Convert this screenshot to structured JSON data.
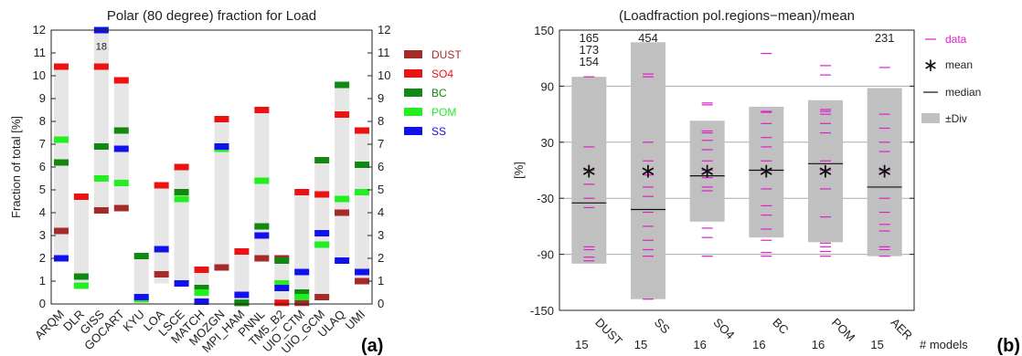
{
  "chart_data": [
    {
      "type": "bar",
      "panel_label": "(a)",
      "title": "Polar (80 degree) fraction for Load",
      "ylabel": "Fraction of total [%]",
      "ylim": [
        0,
        12
      ],
      "yticks": [
        "0",
        "1",
        "2",
        "3",
        "4",
        "5",
        "6",
        "7",
        "8",
        "9",
        "10",
        "11",
        "12"
      ],
      "grid": false,
      "legend_position": "right",
      "categories": [
        "ARQM",
        "DLR",
        "GISS",
        "GOCART",
        "KYU",
        "LOA",
        "LSCE",
        "MATCH",
        "MOZGN",
        "MPI_HAM",
        "PNNL",
        "TM5_B2",
        "UIO_CTM",
        "UIO_GCM",
        "ULAQ",
        "UMI"
      ],
      "range_bar": {
        "low": [
          2.0,
          0.8,
          4.1,
          4.2,
          0.2,
          0.9,
          0.9,
          0.05,
          1.6,
          0.1,
          2.0,
          0.05,
          0.3,
          0.3,
          1.9,
          1.0
        ],
        "high": [
          10.4,
          4.7,
          12.0,
          9.8,
          2.1,
          5.2,
          6.0,
          1.5,
          8.1,
          2.3,
          8.5,
          2.0,
          4.9,
          6.3,
          9.6,
          7.6
        ],
        "color": "#e6e6e6"
      },
      "series": [
        {
          "name": "DUST",
          "color": "#a52a2a",
          "values": [
            3.2,
            null,
            4.1,
            4.2,
            null,
            1.3,
            null,
            null,
            1.6,
            0.05,
            2.0,
            2.0,
            0.05,
            0.3,
            4.0,
            1.0
          ]
        },
        {
          "name": "SO4",
          "color": "#ee1111",
          "values": [
            10.4,
            4.7,
            10.4,
            9.8,
            null,
            5.2,
            6.0,
            1.5,
            8.1,
            2.3,
            8.5,
            0.05,
            4.9,
            4.8,
            8.3,
            7.6
          ]
        },
        {
          "name": "BC",
          "color": "#118811",
          "values": [
            6.2,
            1.2,
            6.9,
            7.6,
            2.1,
            null,
            4.9,
            0.7,
            null,
            0.05,
            3.4,
            1.9,
            0.5,
            6.3,
            9.6,
            6.1
          ]
        },
        {
          "name": "POM",
          "color": "#22ee22",
          "values": [
            7.2,
            0.8,
            5.5,
            5.3,
            0.2,
            null,
            4.6,
            0.5,
            6.8,
            null,
            5.4,
            0.9,
            0.3,
            2.6,
            4.6,
            4.9
          ]
        },
        {
          "name": "SS",
          "color": "#1111ee",
          "values": [
            2.0,
            null,
            12.0,
            6.8,
            0.3,
            2.4,
            0.9,
            0.1,
            6.9,
            0.4,
            3.0,
            0.7,
            1.4,
            3.1,
            1.9,
            1.4
          ]
        }
      ],
      "annotations": [
        {
          "category": "GISS",
          "text": "18"
        }
      ]
    },
    {
      "type": "scatter",
      "panel_label": "(b)",
      "title": "(Loadfraction pol.regions−mean)/mean",
      "ylabel": "[%]",
      "ylim": [
        -150,
        150
      ],
      "yticks": [
        "-150",
        "-90",
        "-30",
        "30",
        "90",
        "150"
      ],
      "grid": true,
      "legend_position": "right",
      "legend": {
        "data": "data",
        "mean": "mean",
        "median": "median",
        "div": "±Div"
      },
      "models_label": "# models",
      "categories": [
        "DUST",
        "SS",
        "SO4",
        "BC",
        "POM",
        "AER"
      ],
      "n_models": [
        "15",
        "15",
        "16",
        "16",
        "16",
        "15"
      ],
      "mean": [
        0,
        0,
        0,
        0,
        0,
        0
      ],
      "median": [
        -35,
        -42,
        -6,
        0,
        7,
        -18
      ],
      "div_low": [
        -100,
        -138,
        -55,
        -72,
        -77,
        -92
      ],
      "div_high": [
        100,
        137,
        53,
        68,
        75,
        88
      ],
      "data": [
        [
          -97,
          -93,
          -85,
          -82,
          -40,
          -30,
          -15,
          0,
          25,
          100,
          154,
          173,
          165
        ],
        [
          -138,
          -92,
          -85,
          -75,
          -60,
          -45,
          -28,
          -18,
          -5,
          10,
          30,
          100,
          103,
          454
        ],
        [
          -92,
          -72,
          -62,
          -22,
          -18,
          -8,
          0,
          10,
          22,
          32,
          40,
          42,
          70,
          72
        ],
        [
          -92,
          -88,
          -75,
          -63,
          -48,
          -38,
          -20,
          0,
          10,
          25,
          35,
          50,
          62,
          63,
          125
        ],
        [
          -92,
          -87,
          -82,
          -78,
          -50,
          -20,
          0,
          10,
          40,
          50,
          60,
          63,
          65,
          102,
          112
        ],
        [
          -92,
          -85,
          -82,
          -65,
          -58,
          -45,
          -30,
          0,
          20,
          30,
          45,
          60,
          110,
          231
        ]
      ],
      "outlier_labels": [
        {
          "category": "DUST",
          "texts": [
            "165",
            "173",
            "154"
          ]
        },
        {
          "category": "SS",
          "texts": [
            "454"
          ]
        },
        {
          "category": "AER",
          "texts": [
            "231"
          ]
        }
      ],
      "colors": {
        "data": "#e020c8",
        "models": "#1a2ad8",
        "div": "#c0c0c0"
      }
    }
  ]
}
